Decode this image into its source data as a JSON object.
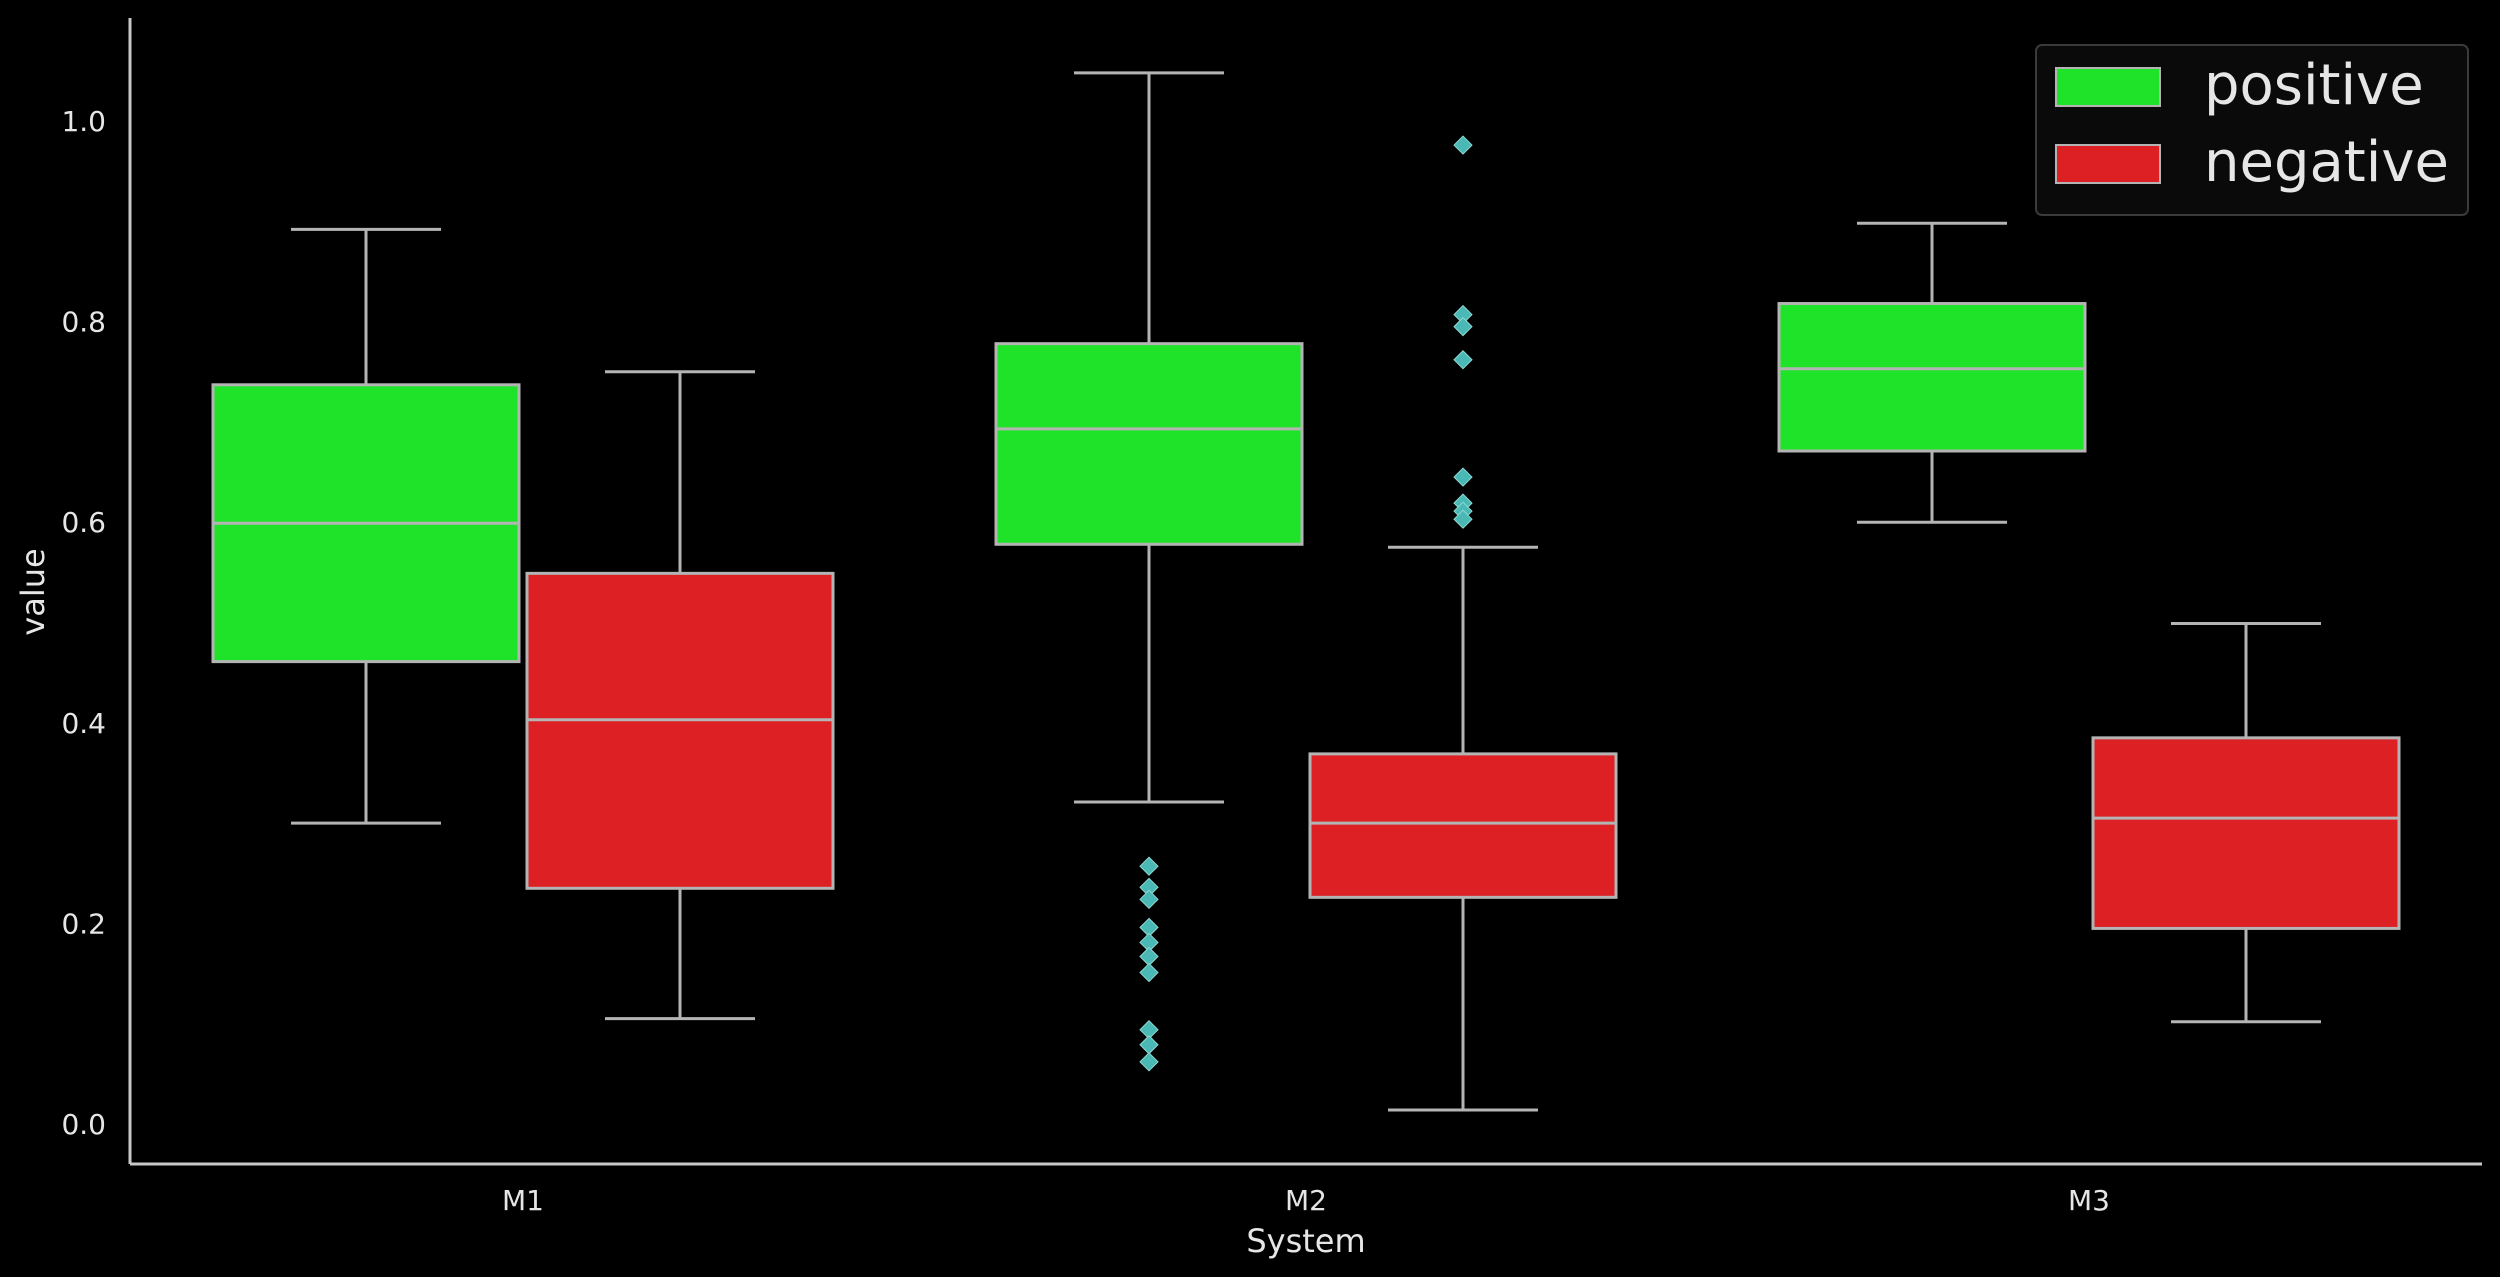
{
  "chart_data": {
    "type": "box",
    "xlabel": "System",
    "ylabel": "value",
    "categories": [
      "M1",
      "M2",
      "M3"
    ],
    "ylim": [
      -0.04,
      1.1
    ],
    "yticks": [
      0.0,
      0.2,
      0.4,
      0.6,
      0.8,
      1.0
    ],
    "ytick_labels": [
      "0.0",
      "0.2",
      "0.4",
      "0.6",
      "0.8",
      "1.0"
    ],
    "grid": false,
    "legend_position": "top-right",
    "series": [
      {
        "name": "positive",
        "color": "#1ee328",
        "boxes": [
          {
            "category": "M1",
            "whisker_low": 0.3,
            "q1": 0.461,
            "median": 0.599,
            "q3": 0.737,
            "whisker_high": 0.892,
            "outliers": []
          },
          {
            "category": "M2",
            "whisker_low": 0.321,
            "q1": 0.578,
            "median": 0.693,
            "q3": 0.778,
            "whisker_high": 1.048,
            "outliers": [
              0.257,
              0.236,
              0.224,
              0.196,
              0.181,
              0.167,
              0.151,
              0.094,
              0.079,
              0.062
            ]
          },
          {
            "category": "M3",
            "whisker_low": 0.6,
            "q1": 0.671,
            "median": 0.753,
            "q3": 0.818,
            "whisker_high": 0.898,
            "outliers": []
          }
        ]
      },
      {
        "name": "negative",
        "color": "#dc2024",
        "boxes": [
          {
            "category": "M1",
            "whisker_low": 0.105,
            "q1": 0.235,
            "median": 0.403,
            "q3": 0.549,
            "whisker_high": 0.75,
            "outliers": []
          },
          {
            "category": "M2",
            "whisker_low": 0.014,
            "q1": 0.226,
            "median": 0.3,
            "q3": 0.369,
            "whisker_high": 0.575,
            "outliers": [
              0.976,
              0.807,
              0.795,
              0.762,
              0.645,
              0.619,
              0.611,
              0.603
            ]
          },
          {
            "category": "M3",
            "whisker_low": 0.102,
            "q1": 0.195,
            "median": 0.305,
            "q3": 0.385,
            "whisker_high": 0.499,
            "outliers": []
          }
        ]
      }
    ],
    "styles": {
      "background": "#000000",
      "axis_color": "#c8c8c8",
      "box_edge_color": "#b4b4b4",
      "outlier_color": "#4ab8b4",
      "text_color": "#e6e6e6",
      "legend_bg": "#0a0a0a",
      "legend_border": "#3a3a3a"
    }
  }
}
